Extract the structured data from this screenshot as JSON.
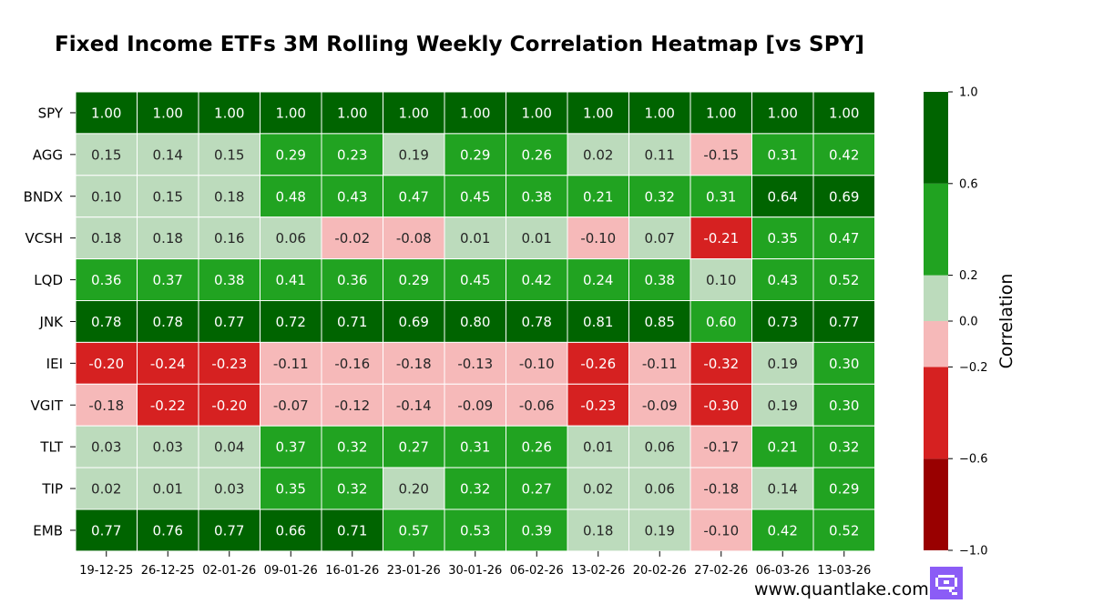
{
  "chart_data": {
    "type": "heatmap",
    "title": "Fixed Income ETFs 3M Rolling Weekly Correlation Heatmap [vs SPY]",
    "rows": [
      "SPY",
      "AGG",
      "BNDX",
      "VCSH",
      "LQD",
      "JNK",
      "IEI",
      "VGIT",
      "TLT",
      "TIP",
      "EMB"
    ],
    "columns": [
      "19-12-25",
      "26-12-25",
      "02-01-26",
      "09-01-26",
      "16-01-26",
      "23-01-26",
      "30-01-26",
      "06-02-26",
      "13-02-26",
      "20-02-26",
      "27-02-26",
      "06-03-26",
      "13-03-26"
    ],
    "values": [
      [
        "1.00",
        "1.00",
        "1.00",
        "1.00",
        "1.00",
        "1.00",
        "1.00",
        "1.00",
        "1.00",
        "1.00",
        "1.00",
        "1.00",
        "1.00"
      ],
      [
        "0.15",
        "0.14",
        "0.15",
        "0.29",
        "0.23",
        "0.19",
        "0.29",
        "0.26",
        "0.02",
        "0.11",
        "-0.15",
        "0.31",
        "0.42"
      ],
      [
        "0.10",
        "0.15",
        "0.18",
        "0.48",
        "0.43",
        "0.47",
        "0.45",
        "0.38",
        "0.21",
        "0.32",
        "0.31",
        "0.64",
        "0.69"
      ],
      [
        "0.18",
        "0.18",
        "0.16",
        "0.06",
        "-0.02",
        "-0.08",
        "0.01",
        "0.01",
        "-0.10",
        "0.07",
        "-0.21",
        "0.35",
        "0.47"
      ],
      [
        "0.36",
        "0.37",
        "0.38",
        "0.41",
        "0.36",
        "0.29",
        "0.45",
        "0.42",
        "0.24",
        "0.38",
        "0.10",
        "0.43",
        "0.52"
      ],
      [
        "0.78",
        "0.78",
        "0.77",
        "0.72",
        "0.71",
        "0.69",
        "0.80",
        "0.78",
        "0.81",
        "0.85",
        "0.60",
        "0.73",
        "0.77"
      ],
      [
        "-0.20",
        "-0.24",
        "-0.23",
        "-0.11",
        "-0.16",
        "-0.18",
        "-0.13",
        "-0.10",
        "-0.26",
        "-0.11",
        "-0.32",
        "0.19",
        "0.30"
      ],
      [
        "-0.18",
        "-0.22",
        "-0.20",
        "-0.07",
        "-0.12",
        "-0.14",
        "-0.09",
        "-0.06",
        "-0.23",
        "-0.09",
        "-0.30",
        "0.19",
        "0.30"
      ],
      [
        "0.03",
        "0.03",
        "0.04",
        "0.37",
        "0.32",
        "0.27",
        "0.31",
        "0.26",
        "0.01",
        "0.06",
        "-0.17",
        "0.21",
        "0.32"
      ],
      [
        "0.02",
        "0.01",
        "0.03",
        "0.35",
        "0.32",
        "0.20",
        "0.32",
        "0.27",
        "0.02",
        "0.06",
        "-0.18",
        "0.14",
        "0.29"
      ],
      [
        "0.77",
        "0.76",
        "0.77",
        "0.66",
        "0.71",
        "0.57",
        "0.53",
        "0.39",
        "0.18",
        "0.19",
        "-0.10",
        "0.42",
        "0.52"
      ]
    ],
    "colorbar": {
      "label": "Correlation",
      "range": [
        -1.0,
        1.0
      ],
      "bins": [
        {
          "min": -1.0,
          "max": -0.6,
          "color": "#990000"
        },
        {
          "min": -0.6,
          "max": -0.2,
          "color": "#d62121"
        },
        {
          "min": -0.2,
          "max": 0.0,
          "color": "#f6b9b9"
        },
        {
          "min": 0.0,
          "max": 0.2,
          "color": "#bcdbbc"
        },
        {
          "min": 0.2,
          "max": 0.6,
          "color": "#21a321"
        },
        {
          "min": 0.6,
          "max": 1.0,
          "color": "#006400"
        }
      ],
      "ticks": [
        "1.0",
        "0.6",
        "0.2",
        "0.0",
        "−0.2",
        "−0.6",
        "−1.0"
      ]
    }
  },
  "footer": {
    "watermark": "www.quantlake.com",
    "logo_color": "#8b5cf6"
  }
}
